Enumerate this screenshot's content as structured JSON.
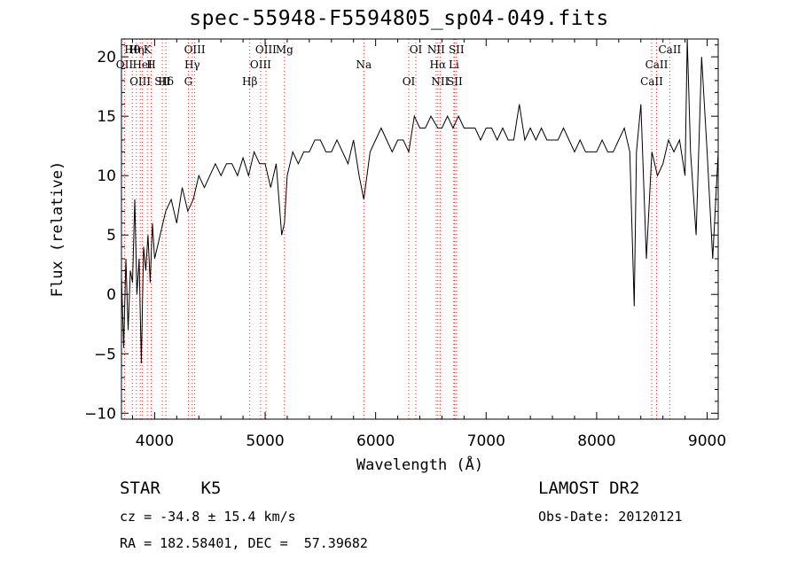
{
  "chart_data": {
    "type": "line",
    "title": "spec-55948-F5594805_sp04-049.fits",
    "xlabel": "Wavelength (Å)",
    "ylabel": "Flux (relative)",
    "xlim": [
      3700,
      9100
    ],
    "ylim": [
      -10.5,
      21.5
    ],
    "xticks": [
      4000,
      5000,
      6000,
      7000,
      8000,
      9000
    ],
    "yticks": [
      -10,
      -5,
      0,
      5,
      10,
      15,
      20
    ],
    "grid": false,
    "series": [
      {
        "x": [
          3700,
          3720,
          3740,
          3760,
          3780,
          3800,
          3820,
          3840,
          3860,
          3880,
          3900,
          3920,
          3940,
          3960,
          3980,
          4000,
          4050,
          4100,
          4150,
          4200,
          4250,
          4300,
          4350,
          4400,
          4450,
          4500,
          4550,
          4600,
          4650,
          4700,
          4750,
          4800,
          4850,
          4900,
          4950,
          5000,
          5050,
          5100,
          5150,
          5175,
          5200,
          5250,
          5300,
          5350,
          5400,
          5450,
          5500,
          5550,
          5600,
          5650,
          5700,
          5750,
          5800,
          5850,
          5893,
          5950,
          6000,
          6050,
          6100,
          6150,
          6200,
          6250,
          6300,
          6350,
          6400,
          6450,
          6500,
          6563,
          6600,
          6650,
          6700,
          6750,
          6800,
          6850,
          6900,
          6950,
          7000,
          7050,
          7100,
          7150,
          7200,
          7250,
          7300,
          7350,
          7400,
          7450,
          7500,
          7550,
          7600,
          7650,
          7700,
          7750,
          7800,
          7850,
          7900,
          7950,
          8000,
          8050,
          8100,
          8150,
          8200,
          8250,
          8300,
          8340,
          8360,
          8400,
          8450,
          8500,
          8550,
          8600,
          8650,
          8700,
          8750,
          8800,
          8820,
          8850,
          8900,
          8950,
          9000,
          9050,
          9100
        ],
        "y": [
          1.5,
          -4.5,
          3,
          -3,
          2,
          1,
          8,
          0,
          3,
          -5.8,
          4,
          2,
          5,
          1,
          6,
          3,
          5,
          7,
          8,
          6,
          9,
          7,
          8,
          10,
          9,
          10,
          11,
          10,
          11,
          11,
          10,
          11.5,
          10,
          12,
          11,
          11,
          9,
          11,
          5,
          6,
          10,
          12,
          11,
          12,
          12,
          13,
          13,
          12,
          12,
          13,
          12,
          11,
          13,
          10,
          8,
          12,
          13,
          14,
          13,
          12,
          13,
          13,
          12,
          15,
          14,
          14,
          15,
          14,
          14,
          15,
          14,
          15,
          14,
          14,
          14,
          13,
          14,
          14,
          13,
          14,
          13,
          13,
          16,
          13,
          14,
          13,
          14,
          13,
          13,
          13,
          14,
          13,
          12,
          13,
          12,
          12,
          12,
          13,
          12,
          12,
          13,
          14,
          12,
          -1,
          12,
          16,
          3,
          12,
          10,
          11,
          13,
          12,
          13,
          10,
          22,
          12,
          5,
          20,
          12,
          3,
          12
        ]
      }
    ],
    "line_marks": [
      {
        "label": "Hθ",
        "x": 3798
      },
      {
        "label": "OII",
        "x": 3727
      },
      {
        "label": "OIII",
        "x": 3869
      },
      {
        "label": "K",
        "x": 3934
      },
      {
        "label": "HeI",
        "x": 3889
      },
      {
        "label": "SII",
        "x": 4070
      },
      {
        "label": "Hη",
        "x": 3835
      },
      {
        "label": "H",
        "x": 3969
      },
      {
        "label": "Hδ",
        "x": 4102
      },
      {
        "label": "OIII",
        "x": 4363
      },
      {
        "label": "Hγ",
        "x": 4340
      },
      {
        "label": "G",
        "x": 4305
      },
      {
        "label": "OIII",
        "x": 5007
      },
      {
        "label": "OIII",
        "x": 4959
      },
      {
        "label": "Hβ",
        "x": 4861
      },
      {
        "label": "Mg",
        "x": 5175
      },
      {
        "label": "Na",
        "x": 5893
      },
      {
        "label": "OI",
        "x": 6300
      },
      {
        "label": "OI",
        "x": 6364
      },
      {
        "label": "Hα",
        "x": 6563
      },
      {
        "label": "SII",
        "x": 6716
      },
      {
        "label": "NII",
        "x": 6548
      },
      {
        "label": "Li",
        "x": 6708
      },
      {
        "label": "NII",
        "x": 6584
      },
      {
        "label": "SII",
        "x": 6731
      },
      {
        "label": "CaII",
        "x": 8542
      },
      {
        "label": "CaII",
        "x": 8498
      },
      {
        "label": "CaII",
        "x": 8662
      }
    ]
  },
  "info": {
    "class_line": "STAR    K5",
    "survey": "LAMOST DR2",
    "redshift": "cz = -34.8 ± 15.4 km/s",
    "obs_date": "Obs-Date: 20120121",
    "coords": "RA = 182.58401, DEC =  57.39682"
  }
}
